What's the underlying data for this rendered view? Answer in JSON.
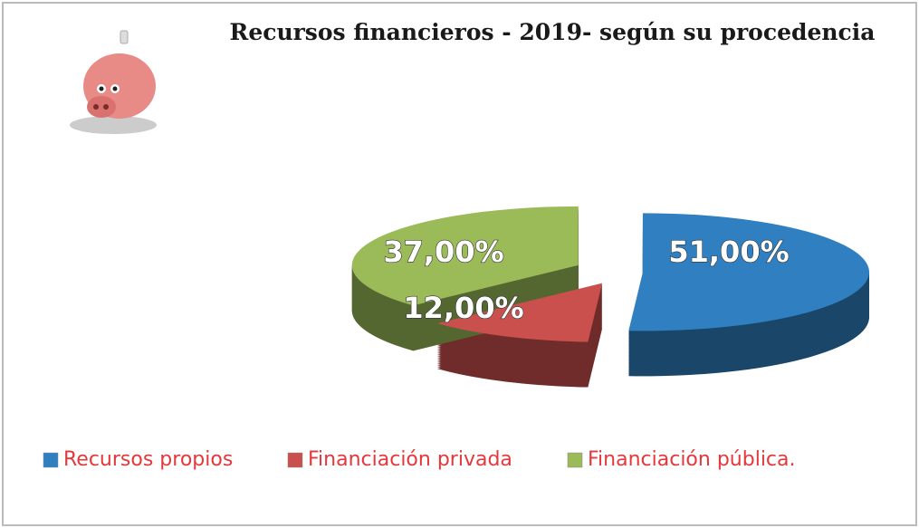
{
  "chart_data": {
    "type": "pie3d",
    "title": "Recursos financieros - 2019- según su procedencia",
    "categories": [
      "Recursos propios",
      "Financiación privada",
      "Financiación pública."
    ],
    "values": [
      51,
      12,
      37
    ],
    "value_labels": [
      "51,00%",
      "12,00%",
      "37,00%"
    ],
    "colors": [
      "#2f7fc1",
      "#c9504c",
      "#9bbb59"
    ],
    "legend": "bottom"
  }
}
